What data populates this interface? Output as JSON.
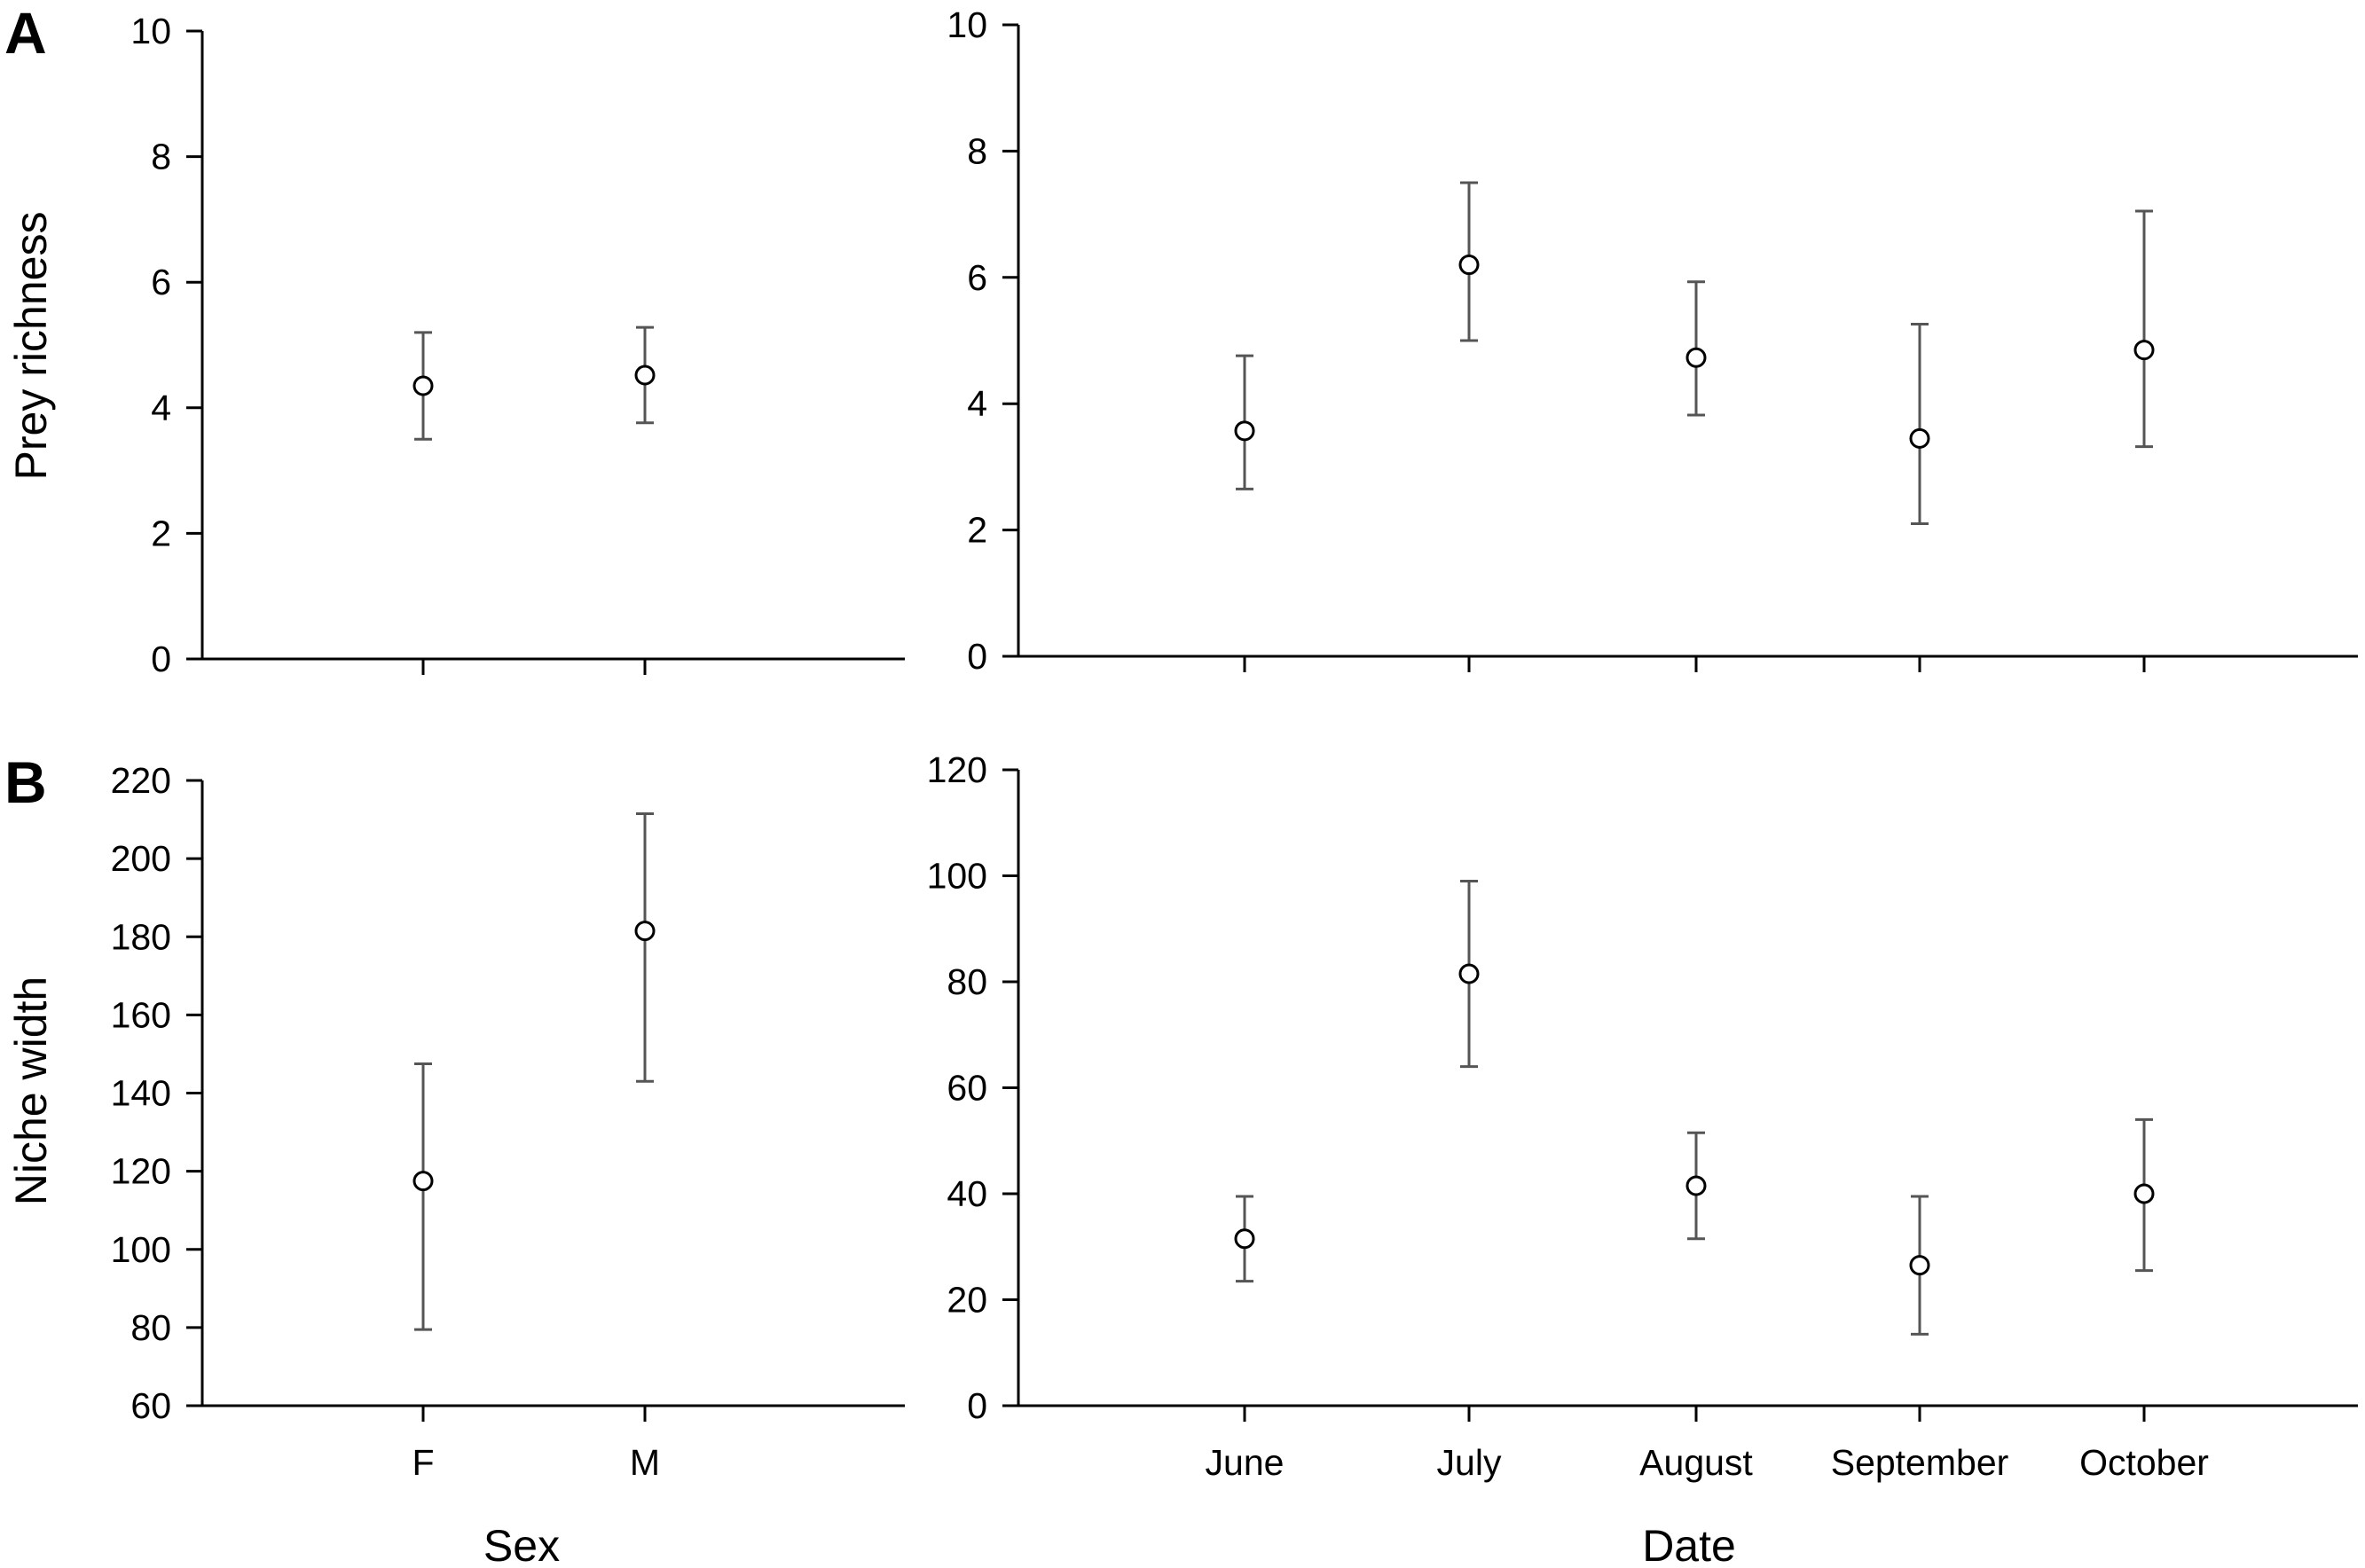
{
  "figure": {
    "panel_letters": [
      "A",
      "B"
    ],
    "shared_x_titles": {
      "sex": "Sex",
      "date": "Date"
    }
  },
  "chart_data": [
    {
      "type": "scatter",
      "panel": "A",
      "x_kind": "categorical",
      "categories": [
        "F",
        "M"
      ],
      "values": [
        4.35,
        4.52
      ],
      "error_lower": [
        3.5,
        3.76
      ],
      "error_upper": [
        5.2,
        5.28
      ],
      "ylabel": "Prey richness",
      "ylim": [
        0,
        10
      ],
      "yticks": [
        0,
        2,
        4,
        6,
        8,
        10
      ],
      "show_x_tick_labels": false,
      "grid": false,
      "marker": "open-circle"
    },
    {
      "type": "scatter",
      "panel": "A",
      "x_kind": "categorical",
      "categories": [
        "June",
        "July",
        "August",
        "September",
        "October"
      ],
      "values": [
        3.57,
        6.2,
        4.73,
        3.45,
        4.85
      ],
      "error_lower": [
        2.65,
        5.0,
        3.82,
        2.1,
        3.32
      ],
      "error_upper": [
        4.76,
        7.5,
        5.93,
        5.26,
        7.05
      ],
      "ylabel": "",
      "ylim": [
        0,
        10
      ],
      "yticks": [
        0,
        2,
        4,
        6,
        8,
        10
      ],
      "show_x_tick_labels": false,
      "grid": false,
      "marker": "open-circle"
    },
    {
      "type": "scatter",
      "panel": "B",
      "x_kind": "categorical",
      "categories": [
        "F",
        "M"
      ],
      "values": [
        117.5,
        181.5
      ],
      "error_lower": [
        79.5,
        143
      ],
      "error_upper": [
        147.5,
        211.5
      ],
      "ylabel": "Niche width",
      "ylim": [
        60,
        220
      ],
      "yticks": [
        60,
        80,
        100,
        120,
        140,
        160,
        180,
        200,
        220
      ],
      "show_x_tick_labels": true,
      "grid": false,
      "marker": "open-circle"
    },
    {
      "type": "scatter",
      "panel": "B",
      "x_kind": "categorical",
      "categories": [
        "June",
        "July",
        "August",
        "September",
        "October"
      ],
      "values": [
        31.5,
        81.5,
        41.5,
        26.5,
        40
      ],
      "error_lower": [
        23.5,
        64,
        31.5,
        13.5,
        25.5
      ],
      "error_upper": [
        39.5,
        99,
        51.5,
        39.5,
        54
      ],
      "ylabel": "",
      "ylim": [
        0,
        120
      ],
      "yticks": [
        0,
        20,
        40,
        60,
        80,
        100,
        120
      ],
      "show_x_tick_labels": true,
      "grid": false,
      "marker": "open-circle"
    }
  ]
}
